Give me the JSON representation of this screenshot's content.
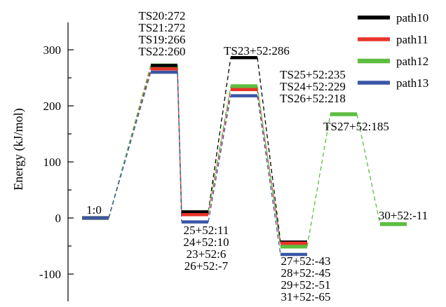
{
  "chart_data": {
    "type": "line",
    "ylabel": "Energy (kJ/mol)",
    "xlabel": "",
    "ylim": [
      -150,
      350
    ],
    "yticks": [
      -100,
      0,
      100,
      200,
      300
    ],
    "grid": false,
    "legend_position": "top-right",
    "series": [
      {
        "name": "path10",
        "color": "#000000",
        "points": [
          {
            "x": 1,
            "y": 0
          },
          {
            "x": 2,
            "y": 272
          },
          {
            "x": 3,
            "y": 11
          },
          {
            "x": 4,
            "y": 286
          },
          {
            "x": 5,
            "y": -43
          }
        ]
      },
      {
        "name": "path11",
        "color": "#e8332a",
        "points": [
          {
            "x": 1,
            "y": 0
          },
          {
            "x": 2,
            "y": 266
          },
          {
            "x": 3,
            "y": 6
          },
          {
            "x": 4,
            "y": 229
          },
          {
            "x": 5,
            "y": -45
          }
        ]
      },
      {
        "name": "path12",
        "color": "#5dbd3f",
        "points": [
          {
            "x": 1,
            "y": 0
          },
          {
            "x": 2,
            "y": 272
          },
          {
            "x": 3,
            "y": 10
          },
          {
            "x": 4,
            "y": 235
          },
          {
            "x": 5,
            "y": -51
          },
          {
            "x": 6,
            "y": 185
          },
          {
            "x": 7,
            "y": -11
          }
        ]
      },
      {
        "name": "path13",
        "color": "#3a56a6",
        "points": [
          {
            "x": 1,
            "y": 0
          },
          {
            "x": 2,
            "y": 260
          },
          {
            "x": 3,
            "y": -7
          },
          {
            "x": 4,
            "y": 218
          },
          {
            "x": 5,
            "y": -65
          }
        ]
      }
    ],
    "annotations": [
      {
        "x": 1,
        "lines": [
          "1:0"
        ],
        "pos": "level-above"
      },
      {
        "x": 2,
        "lines": [
          "TS20:272",
          "TS21:272",
          "TS19:266",
          "TS22:260"
        ],
        "pos": "above"
      },
      {
        "x": 3,
        "lines": [
          "25+52:11",
          "24+52:10",
          "23+52:6",
          "26+52:-7"
        ],
        "pos": "below"
      },
      {
        "x": 4,
        "lines": [
          "TS23+52:286"
        ],
        "pos": "above"
      },
      {
        "x": 4,
        "lines": [
          "TS25+52:235",
          "TS24+52:229",
          "TS26+52:218"
        ],
        "pos": "right"
      },
      {
        "x": 5,
        "lines": [
          "27+52:-43",
          "28+52:-45",
          "29+52:-51",
          "31+52:-65"
        ],
        "pos": "below"
      },
      {
        "x": 6,
        "lines": [
          "TS27+52:185"
        ],
        "pos": "below"
      },
      {
        "x": 7,
        "lines": [
          "30+52:-11"
        ],
        "pos": "level-above"
      }
    ]
  }
}
